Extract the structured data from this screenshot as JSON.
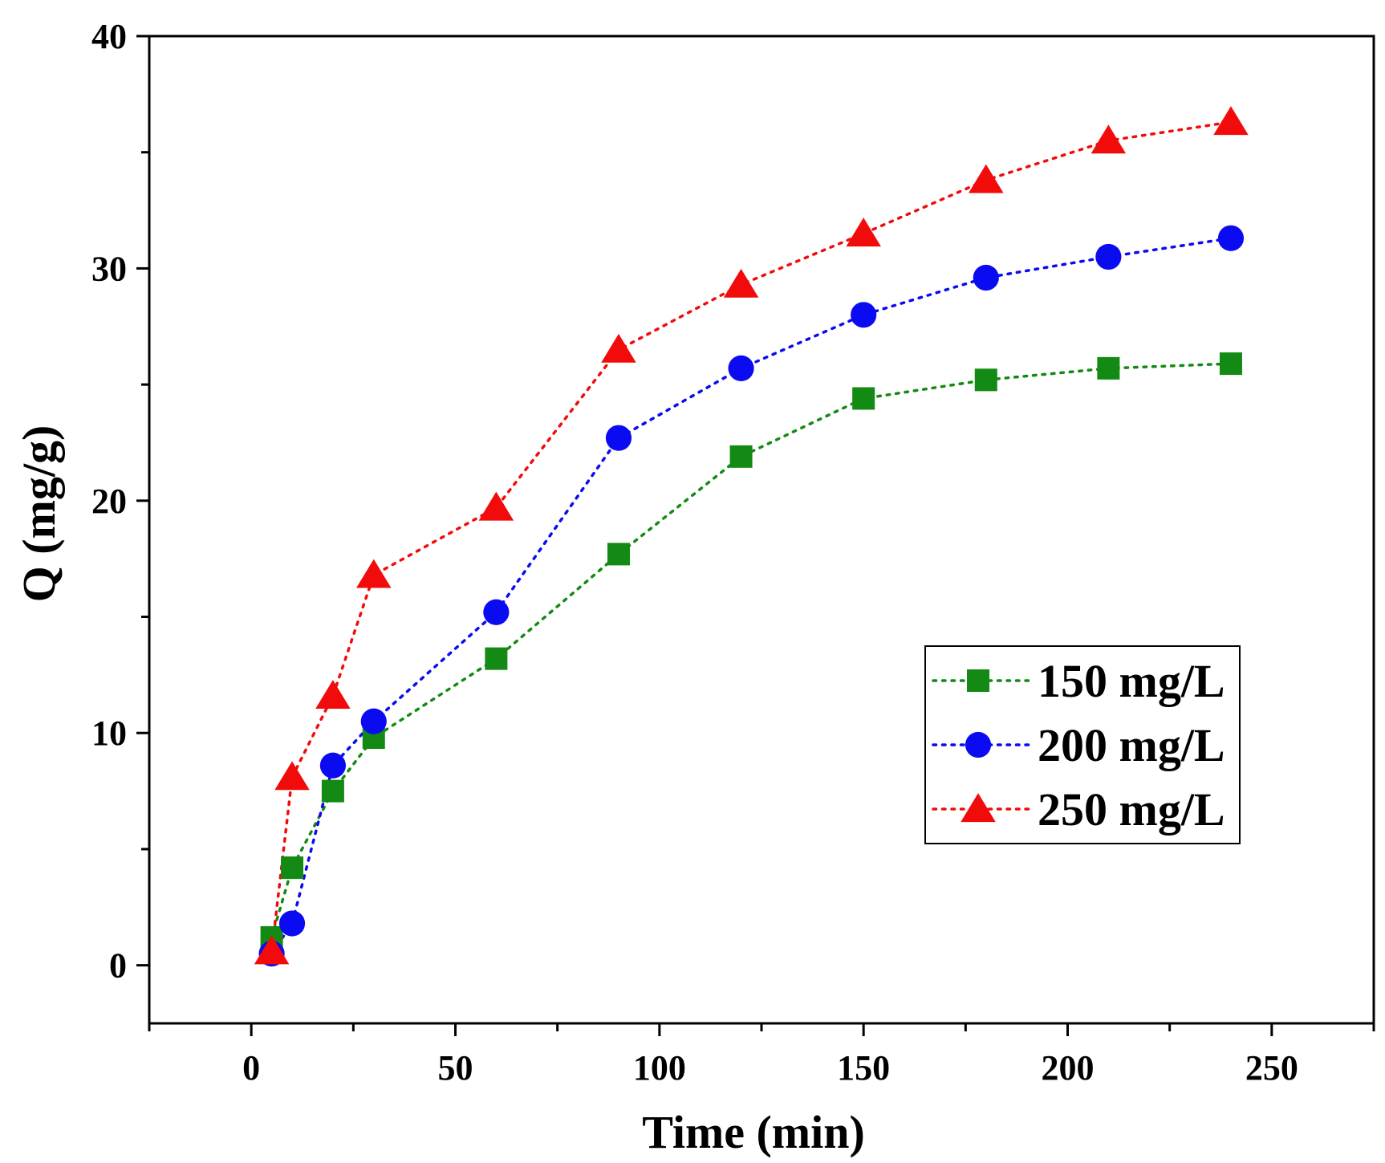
{
  "chart_data": {
    "type": "scatter",
    "title": "",
    "xlabel": "Time (min)",
    "ylabel": "Q (mg/g)",
    "xlim": [
      -25,
      275
    ],
    "ylim": [
      -2.5,
      40
    ],
    "x_ticks": [
      0,
      50,
      100,
      150,
      200,
      250
    ],
    "y_ticks": [
      0,
      10,
      20,
      30,
      40
    ],
    "grid": false,
    "legend_position": "bottom-right",
    "line_style": "dotted",
    "x": [
      5,
      10,
      20,
      30,
      60,
      90,
      120,
      150,
      180,
      210,
      240
    ],
    "series": [
      {
        "name": "150 mg/L",
        "marker": "square",
        "color": "#138a13",
        "values": [
          1.2,
          4.2,
          7.5,
          9.8,
          13.2,
          17.7,
          21.9,
          24.4,
          25.2,
          25.7,
          25.9
        ]
      },
      {
        "name": "200 mg/L",
        "marker": "circle",
        "color": "#0b0bf2",
        "values": [
          0.5,
          1.8,
          8.6,
          10.5,
          15.2,
          22.7,
          25.7,
          28.0,
          29.6,
          30.5,
          31.3
        ]
      },
      {
        "name": "250 mg/L",
        "marker": "triangle",
        "color": "#f20b0b",
        "values": [
          0.6,
          8.1,
          11.6,
          16.8,
          19.7,
          26.5,
          29.3,
          31.5,
          33.8,
          35.5,
          36.3
        ]
      }
    ]
  }
}
